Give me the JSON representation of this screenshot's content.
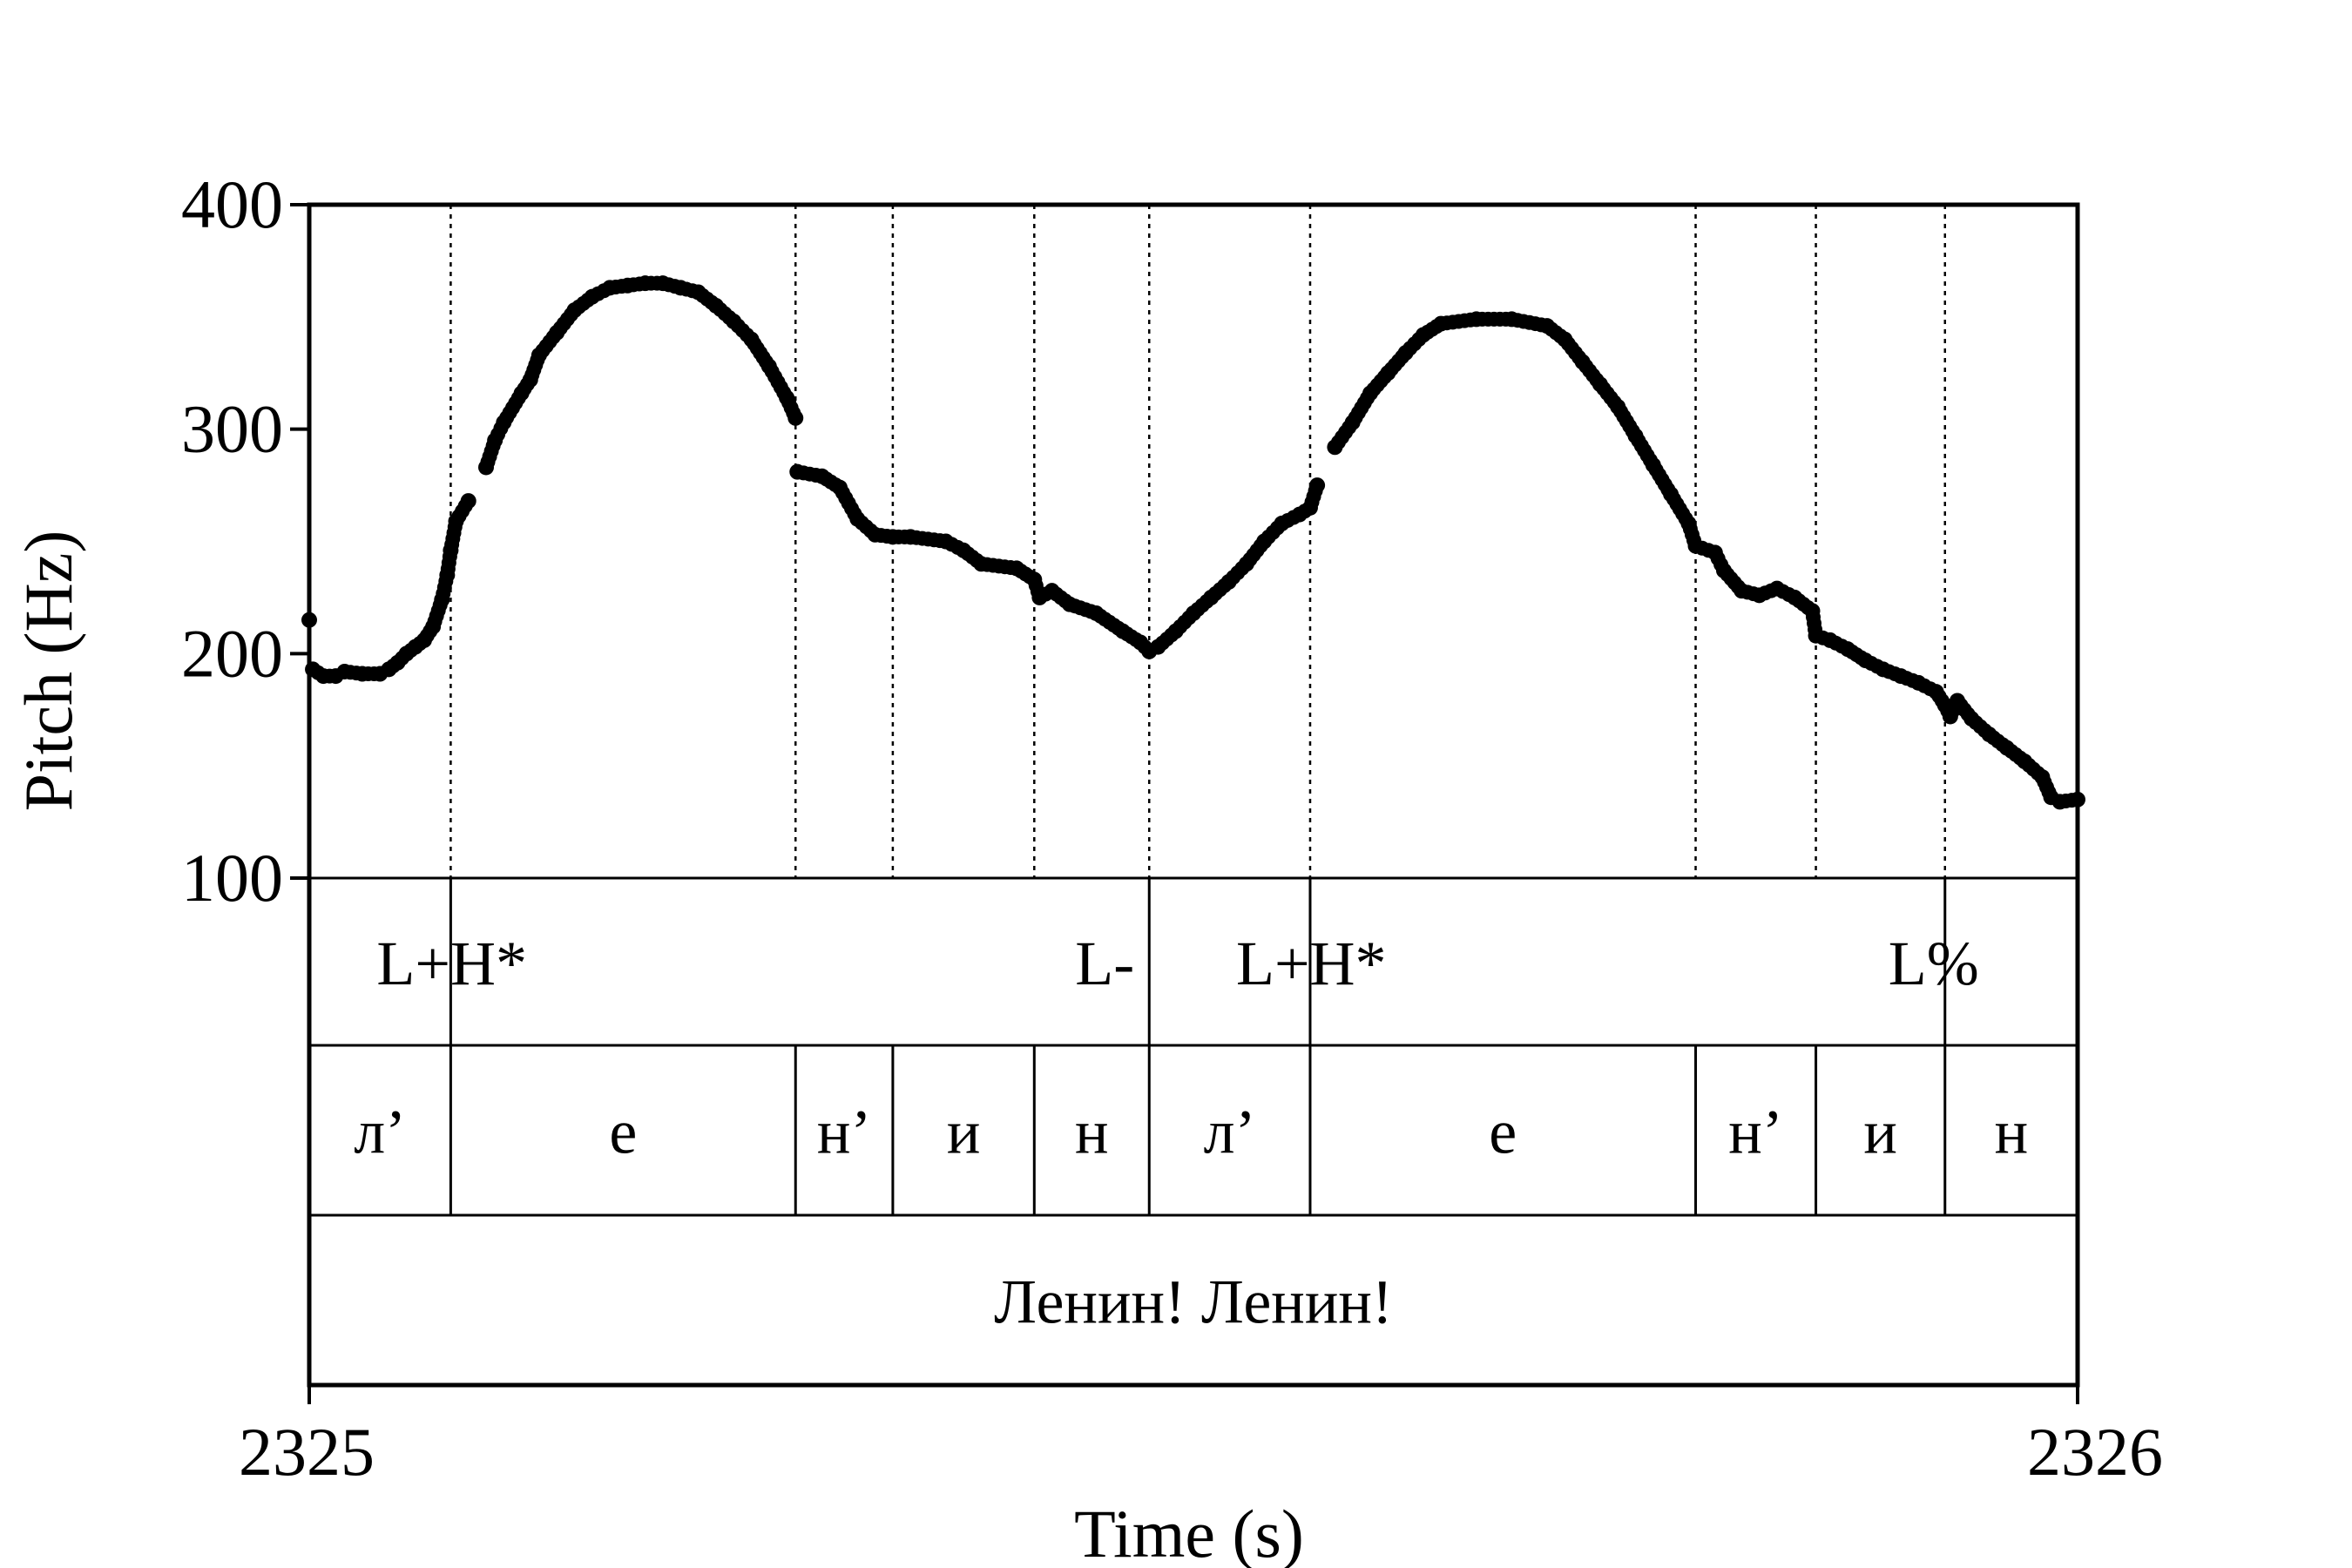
{
  "chart_data": {
    "type": "scatter",
    "xlabel": "Time (s)",
    "ylabel": "Pitch (Hz)",
    "xlim": [
      2325,
      2326
    ],
    "ylim": [
      100,
      400
    ],
    "x_ticks": [
      "2325",
      "2326"
    ],
    "y_ticks": [
      100,
      200,
      300,
      400
    ],
    "y_tick_labels": [
      "100",
      "200",
      "300",
      "400"
    ],
    "colors": {
      "points": "#000000",
      "lines": "#000000"
    },
    "boundaries": [
      2325.08,
      2325.275,
      2325.33,
      2325.41,
      2325.475,
      2325.566,
      2325.784,
      2325.852,
      2325.925
    ],
    "tone_tier": [
      {
        "label": "L+H*",
        "time": 2325.08
      },
      {
        "label": "L-",
        "time": 2325.475
      },
      {
        "label": "L+H*",
        "time": 2325.566
      },
      {
        "label": "L%",
        "time": 2325.925
      }
    ],
    "segment_tier": [
      {
        "label": "л’",
        "start": 2325.0,
        "end": 2325.08
      },
      {
        "label": "е",
        "start": 2325.08,
        "end": 2325.275
      },
      {
        "label": "н’",
        "start": 2325.275,
        "end": 2325.33
      },
      {
        "label": "и",
        "start": 2325.33,
        "end": 2325.41
      },
      {
        "label": "н",
        "start": 2325.41,
        "end": 2325.475
      },
      {
        "label": "л’",
        "start": 2325.475,
        "end": 2325.566
      },
      {
        "label": "е",
        "start": 2325.566,
        "end": 2325.784
      },
      {
        "label": "н’",
        "start": 2325.784,
        "end": 2325.852
      },
      {
        "label": "и",
        "start": 2325.852,
        "end": 2325.925
      },
      {
        "label": "н",
        "start": 2325.925,
        "end": 2326.0
      }
    ],
    "word_tier": [
      {
        "label": "Ленин! Ленин!",
        "start": 2325.0,
        "end": 2326.0
      }
    ],
    "pitch_points": [
      [
        2325.0,
        215
      ],
      [
        2325.002,
        193
      ],
      [
        2325.008,
        190
      ],
      [
        2325.015,
        190
      ],
      [
        2325.02,
        192
      ],
      [
        2325.03,
        191
      ],
      [
        2325.04,
        191
      ],
      [
        2325.045,
        193
      ],
      [
        2325.05,
        196
      ],
      [
        2325.055,
        200
      ],
      [
        2325.06,
        203
      ],
      [
        2325.065,
        206
      ],
      [
        2325.07,
        212
      ],
      [
        2325.075,
        224
      ],
      [
        2325.078,
        235
      ],
      [
        2325.08,
        246
      ],
      [
        2325.083,
        259
      ],
      [
        2325.09,
        268
      ],
      [
        2325.1,
        283
      ],
      [
        2325.105,
        295
      ],
      [
        2325.11,
        303
      ],
      [
        2325.12,
        316
      ],
      [
        2325.125,
        322
      ],
      [
        2325.13,
        333
      ],
      [
        2325.14,
        343
      ],
      [
        2325.15,
        353
      ],
      [
        2325.16,
        359
      ],
      [
        2325.17,
        363
      ],
      [
        2325.18,
        364
      ],
      [
        2325.19,
        365
      ],
      [
        2325.2,
        365
      ],
      [
        2325.21,
        363
      ],
      [
        2325.22,
        361
      ],
      [
        2325.23,
        355
      ],
      [
        2325.24,
        348
      ],
      [
        2325.25,
        340
      ],
      [
        2325.26,
        328
      ],
      [
        2325.27,
        314
      ],
      [
        2325.275,
        305
      ],
      [
        2325.276,
        281
      ],
      [
        2325.29,
        279
      ],
      [
        2325.3,
        274
      ],
      [
        2325.31,
        260
      ],
      [
        2325.32,
        253
      ],
      [
        2325.33,
        252
      ],
      [
        2325.34,
        252
      ],
      [
        2325.36,
        250
      ],
      [
        2325.37,
        246
      ],
      [
        2325.38,
        240
      ],
      [
        2325.4,
        238
      ],
      [
        2325.41,
        233
      ],
      [
        2325.413,
        225
      ],
      [
        2325.42,
        228
      ],
      [
        2325.43,
        222
      ],
      [
        2325.445,
        218
      ],
      [
        2325.46,
        210
      ],
      [
        2325.47,
        205
      ],
      [
        2325.475,
        201
      ],
      [
        2325.48,
        203
      ],
      [
        2325.49,
        210
      ],
      [
        2325.5,
        218
      ],
      [
        2325.51,
        225
      ],
      [
        2325.52,
        232
      ],
      [
        2325.53,
        240
      ],
      [
        2325.54,
        250
      ],
      [
        2325.55,
        258
      ],
      [
        2325.56,
        262
      ],
      [
        2325.566,
        265
      ],
      [
        2325.57,
        275
      ],
      [
        2325.58,
        292
      ],
      [
        2325.59,
        303
      ],
      [
        2325.6,
        316
      ],
      [
        2325.61,
        325
      ],
      [
        2325.62,
        334
      ],
      [
        2325.63,
        342
      ],
      [
        2325.64,
        347
      ],
      [
        2325.66,
        349
      ],
      [
        2325.68,
        349
      ],
      [
        2325.7,
        346
      ],
      [
        2325.71,
        340
      ],
      [
        2325.72,
        330
      ],
      [
        2325.73,
        320
      ],
      [
        2325.74,
        310
      ],
      [
        2325.75,
        297
      ],
      [
        2325.76,
        284
      ],
      [
        2325.77,
        271
      ],
      [
        2325.78,
        258
      ],
      [
        2325.784,
        248
      ],
      [
        2325.795,
        245
      ],
      [
        2325.8,
        237
      ],
      [
        2325.81,
        228
      ],
      [
        2325.82,
        226
      ],
      [
        2325.83,
        229
      ],
      [
        2325.84,
        225
      ],
      [
        2325.85,
        219
      ],
      [
        2325.852,
        208
      ],
      [
        2325.86,
        206
      ],
      [
        2325.87,
        202
      ],
      [
        2325.88,
        197
      ],
      [
        2325.89,
        193
      ],
      [
        2325.9,
        190
      ],
      [
        2325.91,
        187
      ],
      [
        2325.92,
        183
      ],
      [
        2325.925,
        177
      ],
      [
        2325.928,
        172
      ],
      [
        2325.932,
        179
      ],
      [
        2325.94,
        171
      ],
      [
        2325.95,
        164
      ],
      [
        2325.96,
        158
      ],
      [
        2325.97,
        152
      ],
      [
        2325.98,
        145
      ],
      [
        2325.985,
        136
      ],
      [
        2325.99,
        134
      ],
      [
        2326.0,
        135
      ]
    ]
  }
}
